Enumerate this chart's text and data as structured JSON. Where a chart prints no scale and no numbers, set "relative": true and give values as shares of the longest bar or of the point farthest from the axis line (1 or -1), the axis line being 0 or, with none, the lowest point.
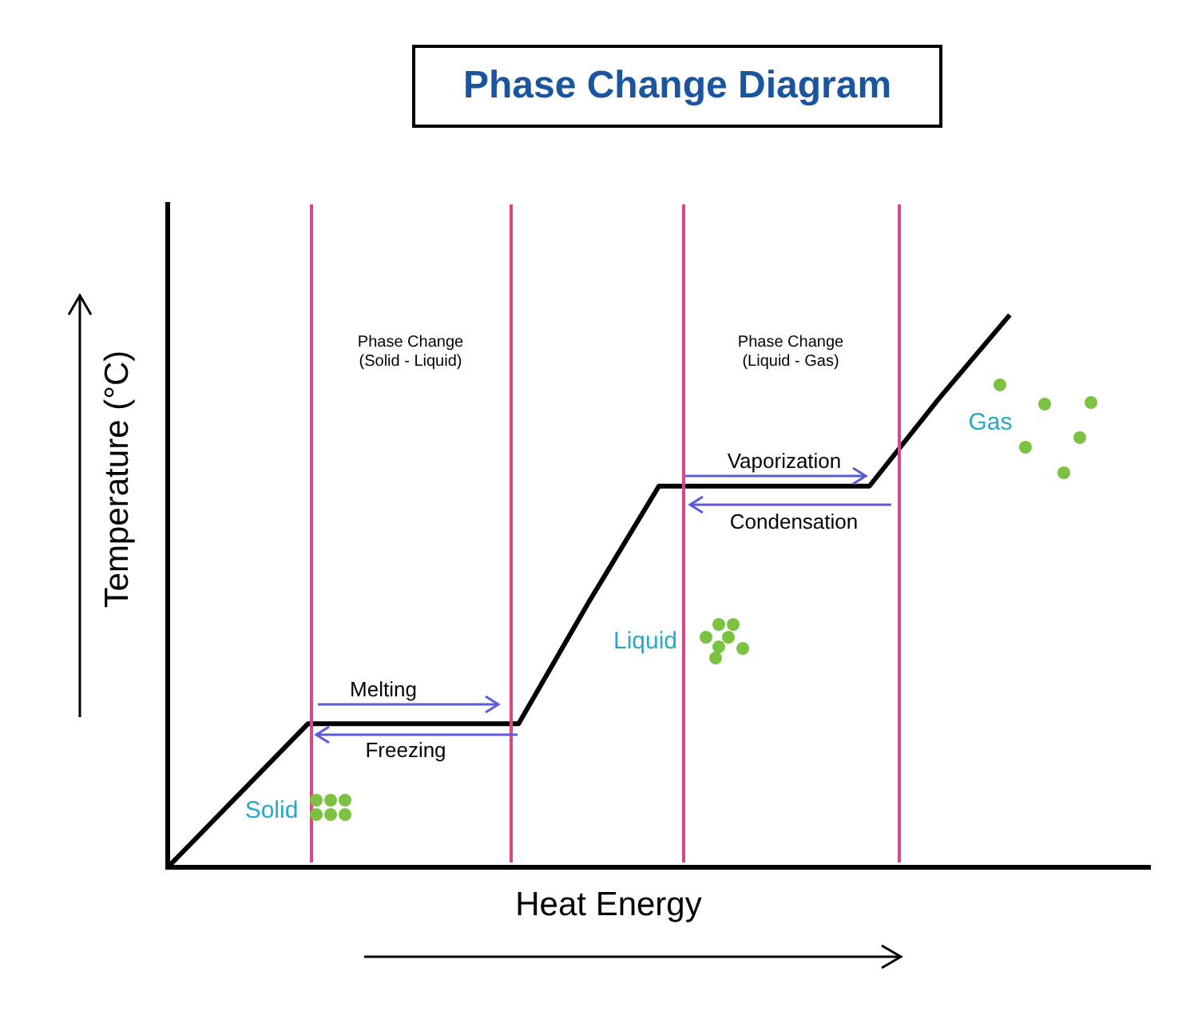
{
  "chart_data": {
    "type": "line",
    "title": "Phase Change Diagram",
    "xlabel": "Heat Energy",
    "ylabel": "Temperature (°C)",
    "relative": true,
    "tick_labels": false,
    "grid": false,
    "legend": false,
    "marker": "none",
    "line_style": "solid",
    "categories": [
      null,
      null,
      null,
      null,
      null,
      null,
      null,
      null,
      null,
      null,
      null,
      null,
      null,
      null,
      null
    ],
    "series": [
      {
        "color": "#000000",
        "values": [
          0,
          0.13,
          0.26,
          0.26,
          0.26,
          0.26,
          0.48,
          0.69,
          0.69,
          0.69,
          0.69,
          0.85,
          1,
          null,
          null
        ]
      }
    ],
    "annotations": [
      "Phase Change\n(Solid - Liquid)",
      "Phase Change\n(Liquid - Gas)",
      "Melting",
      "Freezing",
      "Vaporization",
      "Condensation",
      "Solid",
      "Liquid",
      "Gas"
    ]
  }
}
